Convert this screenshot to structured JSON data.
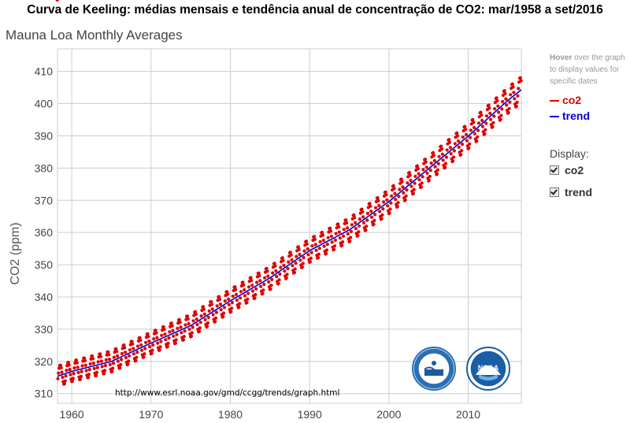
{
  "page_title": "Curva de Keeling: médias mensais e tendência anual de concentração de CO2: mar/1958 a set/2016",
  "source_url": "http://www.esrl.noaa.gov/gmd/ccgg/trends/graph.html",
  "sidebar": {
    "hover_bold": "Hover",
    "hover_rest": " over the graph to display values for specific dates",
    "display_label": "Display:",
    "toggles": [
      {
        "label": "co2",
        "checked": true
      },
      {
        "label": "trend",
        "checked": true
      }
    ]
  },
  "logos": [
    {
      "name": "esrl-logo",
      "text": ""
    },
    {
      "name": "noaa-logo",
      "text": "NOAA"
    }
  ],
  "colors": {
    "co2": "#dd0000",
    "trend": "#0000cc",
    "grid": "#cccccc",
    "axis_text": "#444444"
  },
  "chart_data": {
    "type": "line",
    "title": "Mauna Loa Monthly Averages",
    "ylabel": "CO2 (ppm)",
    "xlabel": "",
    "xlim": [
      1958.2,
      2016.7
    ],
    "ylim": [
      307,
      417
    ],
    "x_ticks": [
      1960,
      1970,
      1980,
      1990,
      2000,
      2010
    ],
    "y_ticks": [
      310,
      320,
      330,
      340,
      350,
      360,
      370,
      380,
      390,
      400,
      410
    ],
    "grid": true,
    "legend_position": "right",
    "series": [
      {
        "name": "co2",
        "color": "#dd0000",
        "marker": "dot",
        "monthly_values": "from trend_points annual means plus seasonal cycle",
        "seasonal_amplitude": [
          3.2,
          3.6,
          3.8,
          4.1
        ]
      },
      {
        "name": "trend",
        "color": "#0000cc",
        "trend_points": [
          [
            1958.2,
            315.4
          ],
          [
            1960,
            316.9
          ],
          [
            1965,
            320.0
          ],
          [
            1970,
            325.7
          ],
          [
            1975,
            331.1
          ],
          [
            1980,
            338.8
          ],
          [
            1985,
            345.9
          ],
          [
            1990,
            354.4
          ],
          [
            1995,
            360.8
          ],
          [
            2000,
            369.6
          ],
          [
            2005,
            379.8
          ],
          [
            2010,
            389.9
          ],
          [
            2015,
            401.0
          ],
          [
            2016.7,
            404.3
          ]
        ]
      }
    ]
  }
}
